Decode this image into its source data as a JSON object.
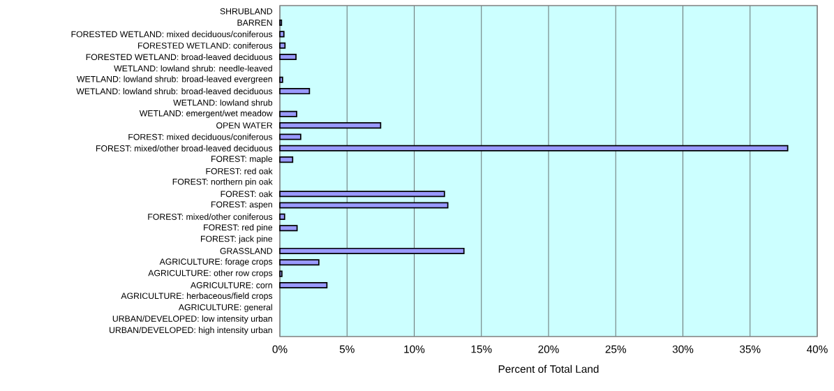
{
  "chart_data": {
    "type": "bar",
    "orientation": "horizontal",
    "xlabel": "Percent of Total Land",
    "categories": [
      "SHRUBLAND",
      "BARREN",
      "FORESTED WETLAND: mixed deciduous/coniferous",
      "FORESTED WETLAND: coniferous",
      "FORESTED WETLAND: broad-leaved deciduous",
      "WETLAND: lowland shrub: needle-leaved",
      "WETLAND: lowland shrub: broad-leaved evergreen",
      "WETLAND: lowland shrub: broad-leaved deciduous",
      "WETLAND: lowland shrub",
      "WETLAND: emergent/wet meadow",
      "OPEN WATER",
      "FOREST: mixed deciduous/coniferous",
      "FOREST: mixed/other broad-leaved deciduous",
      "FOREST: maple",
      "FOREST: red oak",
      "FOREST: northern pin oak",
      "FOREST: oak",
      "FOREST: aspen",
      "FOREST: mixed/other coniferous",
      "FOREST: red pine",
      "FOREST: jack pine",
      "GRASSLAND",
      "AGRICULTURE: forage crops",
      "AGRICULTURE: other row crops",
      "AGRICULTURE: corn",
      "AGRICULTURE: herbaceous/field crops",
      "AGRICULTURE: general",
      "URBAN/DEVELOPED: low intensity urban",
      "URBAN/DEVELOPED: high intensity urban"
    ],
    "values": [
      0,
      0.12,
      0.3,
      0.38,
      1.2,
      0,
      0.2,
      2.2,
      0,
      1.25,
      7.5,
      1.55,
      37.8,
      0.95,
      0,
      0,
      12.25,
      12.5,
      0.35,
      1.28,
      0,
      13.7,
      2.9,
      0.15,
      3.5,
      0,
      0,
      0,
      0
    ],
    "color": "#9999ff",
    "xlim": [
      0,
      40
    ],
    "xticks": [
      {
        "value": 0,
        "label": "0%"
      },
      {
        "value": 5,
        "label": "5%"
      },
      {
        "value": 10,
        "label": "10%"
      },
      {
        "value": 15,
        "label": "15%"
      },
      {
        "value": 20,
        "label": "20%"
      },
      {
        "value": 25,
        "label": "25%"
      },
      {
        "value": 30,
        "label": "30%"
      },
      {
        "value": 35,
        "label": "35%"
      },
      {
        "value": 40,
        "label": "40%"
      }
    ],
    "grid": "x"
  }
}
